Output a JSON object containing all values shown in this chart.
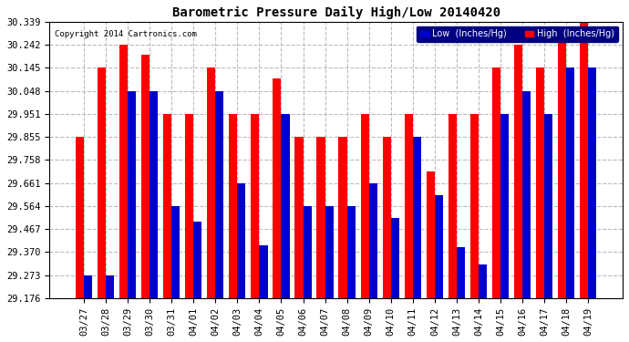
{
  "title": "Barometric Pressure Daily High/Low 20140420",
  "copyright": "Copyright 2014 Cartronics.com",
  "legend_low": "Low  (Inches/Hg)",
  "legend_high": "High  (Inches/Hg)",
  "low_color": "#0000cc",
  "high_color": "#ff0000",
  "bg_color": "#ffffff",
  "grid_color": "#bbbbbb",
  "ylim": [
    29.176,
    30.339
  ],
  "yticks": [
    29.176,
    29.273,
    29.37,
    29.467,
    29.564,
    29.661,
    29.758,
    29.855,
    29.951,
    30.048,
    30.145,
    30.242,
    30.339
  ],
  "dates": [
    "03/27",
    "03/28",
    "03/29",
    "03/30",
    "03/31",
    "04/01",
    "04/02",
    "04/03",
    "04/04",
    "04/05",
    "04/06",
    "04/07",
    "04/08",
    "04/09",
    "04/10",
    "04/11",
    "04/12",
    "04/13",
    "04/14",
    "04/15",
    "04/16",
    "04/17",
    "04/18",
    "04/19"
  ],
  "high_values": [
    29.855,
    30.145,
    30.242,
    30.2,
    29.951,
    29.951,
    30.145,
    29.951,
    29.951,
    30.1,
    29.855,
    29.855,
    29.855,
    29.951,
    29.855,
    29.951,
    29.71,
    29.951,
    29.951,
    30.145,
    30.242,
    30.145,
    30.32,
    30.339
  ],
  "low_values": [
    29.273,
    29.273,
    30.048,
    30.048,
    29.564,
    29.5,
    30.048,
    29.661,
    29.4,
    29.951,
    29.564,
    29.564,
    29.564,
    29.661,
    29.515,
    29.855,
    29.61,
    29.39,
    29.32,
    29.951,
    30.048,
    29.951,
    30.145,
    30.145
  ]
}
